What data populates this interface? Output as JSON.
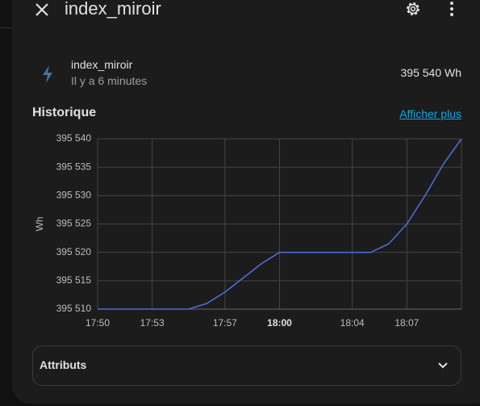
{
  "header": {
    "title": "index_miroir"
  },
  "entity": {
    "name": "index_miroir",
    "time": "Il y a 6 minutes",
    "state": "395 540 Wh"
  },
  "history": {
    "title": "Historique",
    "more_link": "Afficher plus"
  },
  "chart_data": {
    "type": "line",
    "y_label": "Wh",
    "color": "#4d6ad6",
    "grid": true,
    "x": [
      "17:50",
      "17:55",
      "17:56",
      "17:57",
      "17:58",
      "17:59",
      "18:00",
      "18:05",
      "18:06",
      "18:07",
      "18:08",
      "18:09",
      "18:10"
    ],
    "values": [
      395510,
      395510,
      395511,
      395513,
      395515.5,
      395518,
      395520,
      395520,
      395521.5,
      395525,
      395530,
      395535.5,
      395540
    ],
    "xlim": [
      "17:50",
      "18:10"
    ],
    "xticks": [
      "17:50",
      "17:53",
      "17:57",
      "18:00",
      "18:04",
      "18:07"
    ],
    "ylim": [
      395510,
      395540
    ],
    "yticks": [
      {
        "value": 395510,
        "label": "395 510"
      },
      {
        "value": 395515,
        "label": "395 515"
      },
      {
        "value": 395520,
        "label": "395 520"
      },
      {
        "value": 395525,
        "label": "395 525"
      },
      {
        "value": 395530,
        "label": "395 530"
      },
      {
        "value": 395535,
        "label": "395 535"
      },
      {
        "value": 395540,
        "label": "395 540"
      }
    ]
  },
  "attributes": {
    "title": "Attributs"
  }
}
